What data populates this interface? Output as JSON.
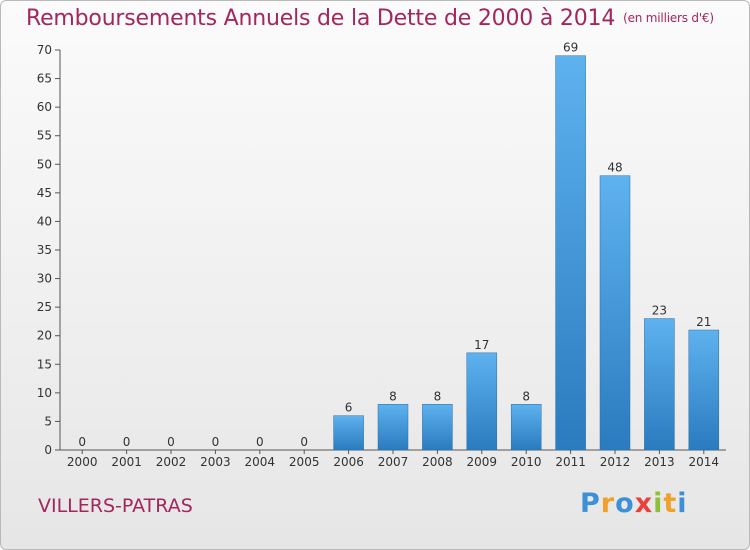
{
  "chart_data": {
    "type": "bar",
    "title": "Remboursements Annuels de la Dette de 2000 à 2014",
    "subtitle": "(en milliers d'€)",
    "categories": [
      "2000",
      "2001",
      "2002",
      "2003",
      "2004",
      "2005",
      "2006",
      "2007",
      "2008",
      "2009",
      "2010",
      "2011",
      "2012",
      "2013",
      "2014"
    ],
    "values": [
      0,
      0,
      0,
      0,
      0,
      0,
      6,
      8,
      8,
      17,
      8,
      69,
      48,
      23,
      21
    ],
    "ylim": [
      0,
      70
    ],
    "yticks": [
      0,
      5,
      10,
      15,
      20,
      25,
      30,
      35,
      40,
      45,
      50,
      55,
      60,
      65,
      70
    ],
    "grid": false,
    "bar_color": "#4a9ee0"
  },
  "commune": "VILLERS-PATRAS",
  "logo": {
    "letters": [
      "P",
      "r",
      "o",
      "x",
      "i",
      "t",
      "i"
    ],
    "colors": [
      "#3d8fd6",
      "#f0a12b",
      "#3d8fd6",
      "#e8403a",
      "#8fbf3a",
      "#f0a12b",
      "#3d8fd6"
    ]
  }
}
